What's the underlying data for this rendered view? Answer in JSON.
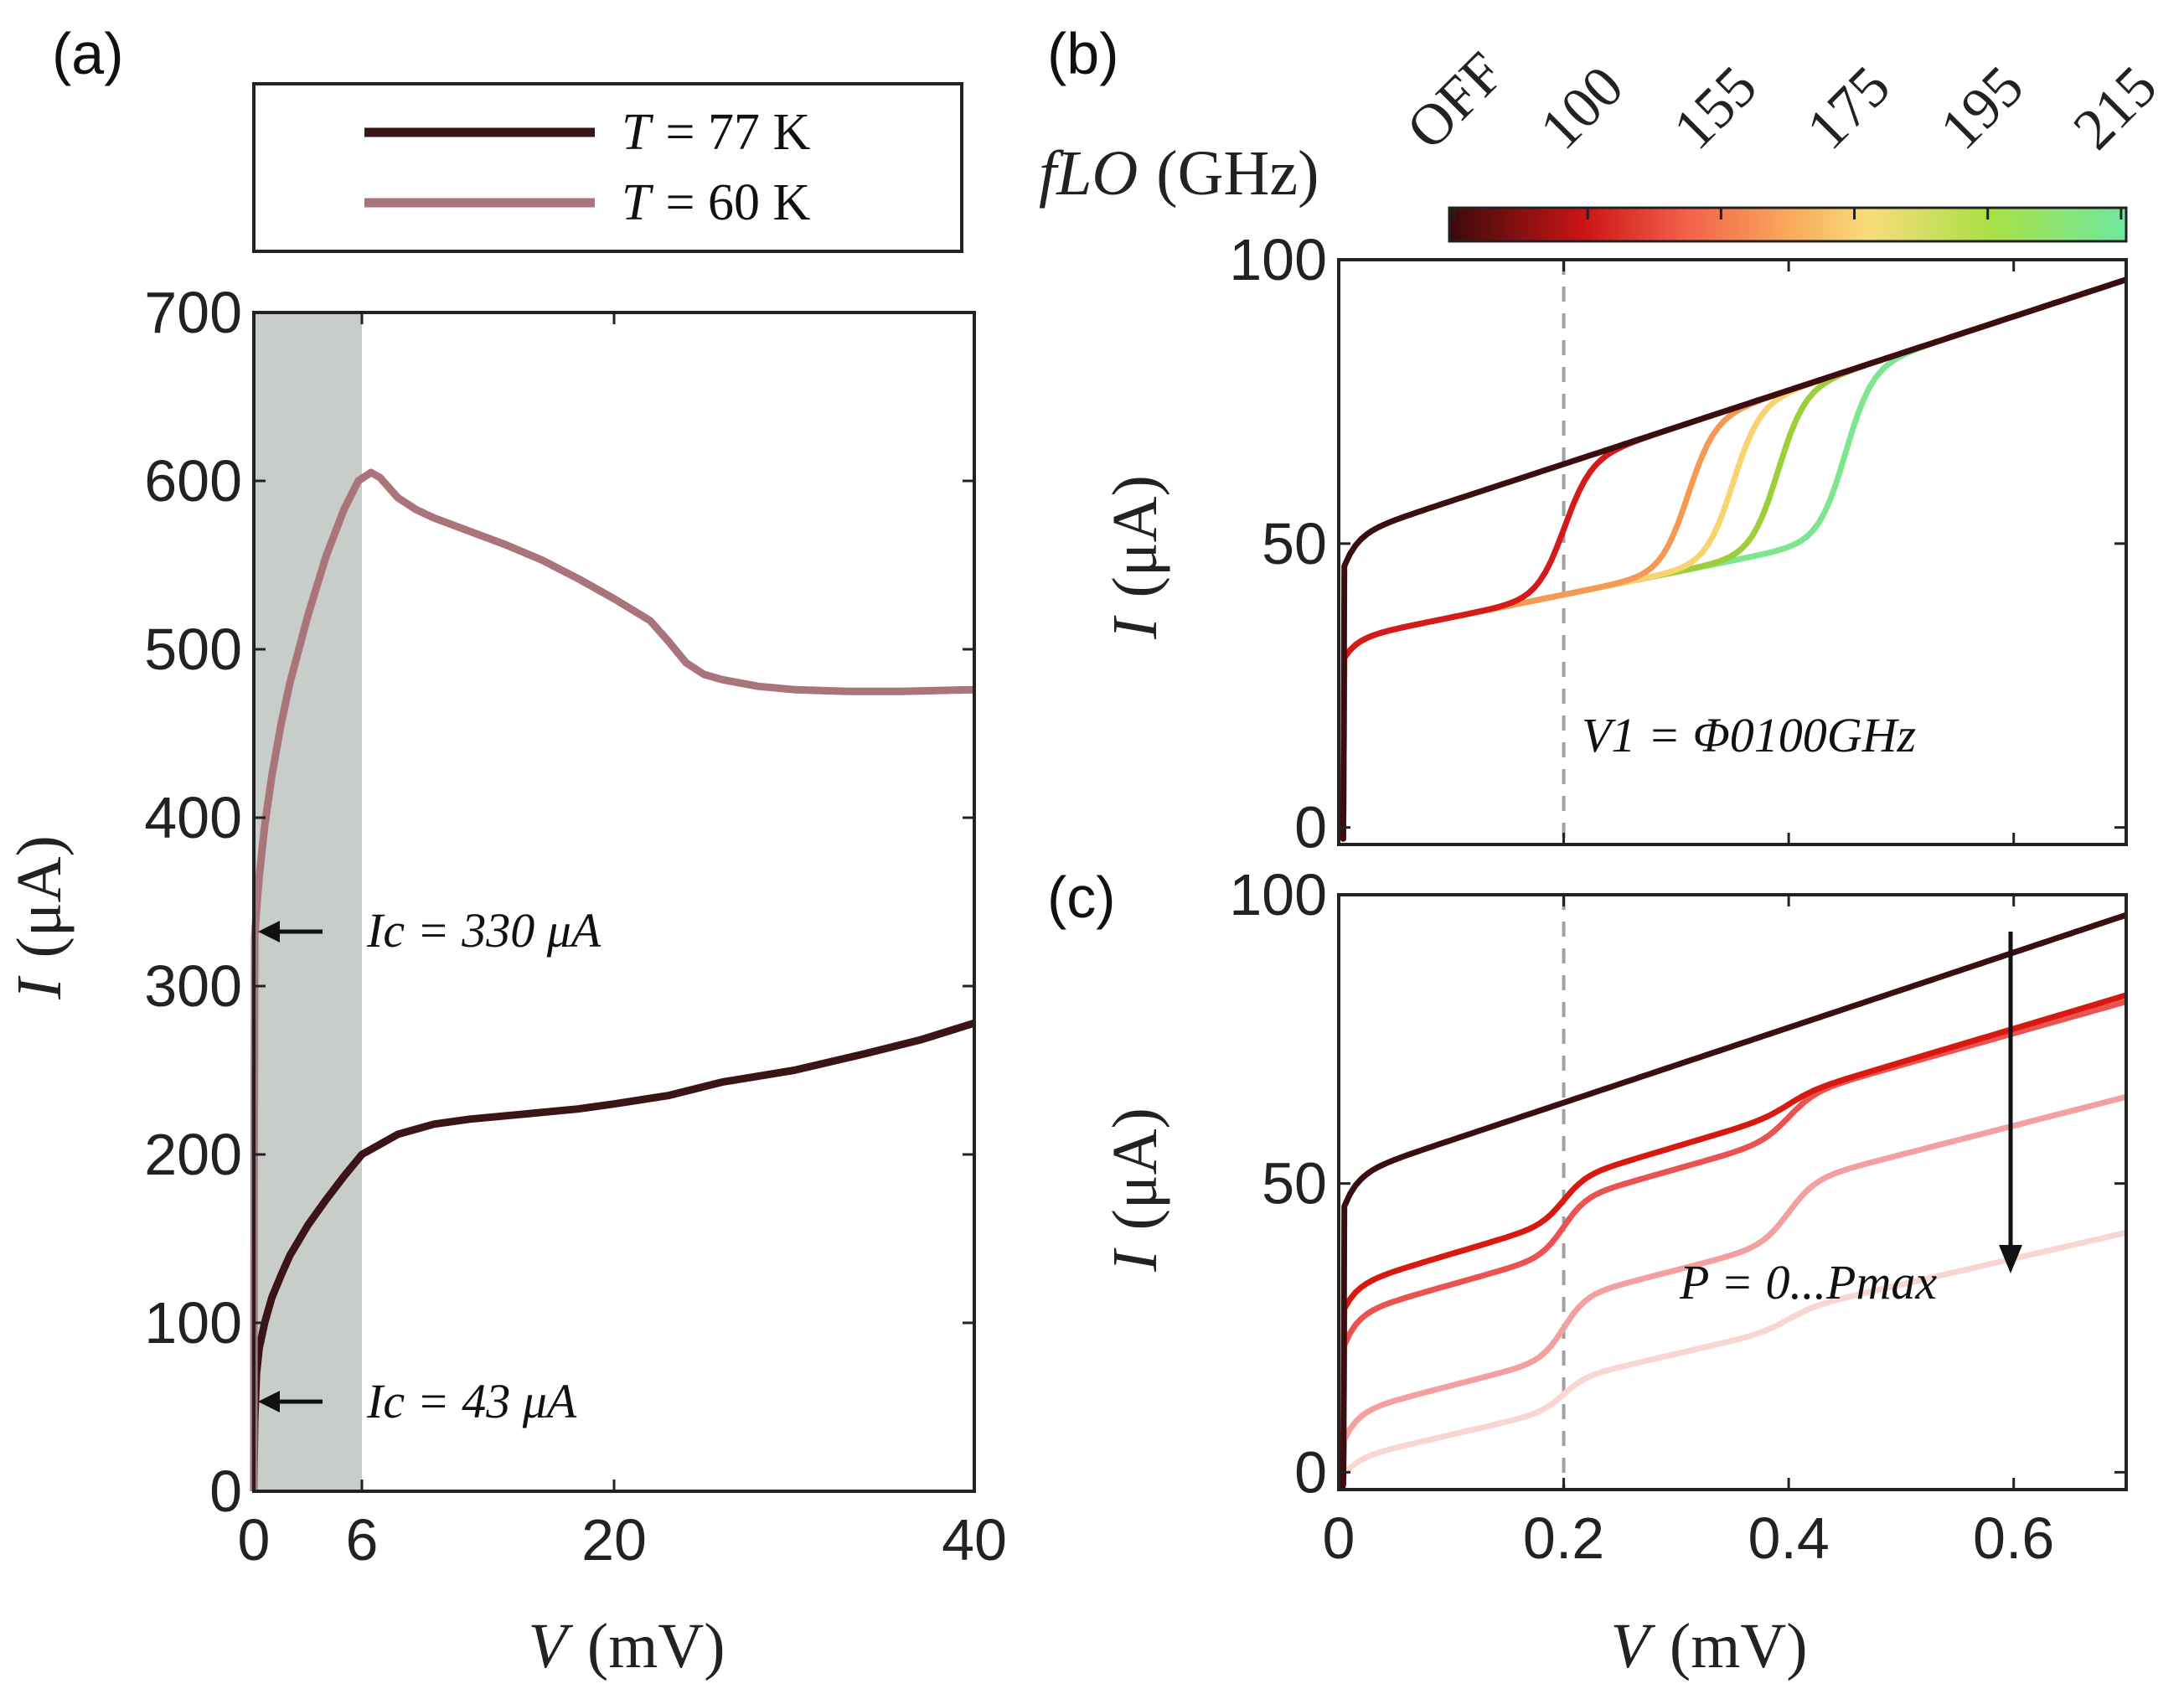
{
  "colors": {
    "axis": "#222222",
    "t77": "#3a1417",
    "t60": "#a9747a",
    "shade": "#c8cdca",
    "dashed": "#9aa3a3"
  },
  "chart_data": [
    {
      "id": "a",
      "panel_label": "(a)",
      "type": "line",
      "xlabel_var": "V",
      "xlabel_unit": "(mV)",
      "ylabel_var": "I",
      "ylabel_unit": "(μA)",
      "xlim": [
        0,
        40
      ],
      "ylim": [
        0,
        700
      ],
      "xticks": [
        "0",
        "6",
        "20",
        "40"
      ],
      "yticks": [
        "0",
        "100",
        "200",
        "300",
        "400",
        "500",
        "600",
        "700"
      ],
      "shaded_region": [
        0,
        6
      ],
      "legend": [
        {
          "var": "T",
          "text": "= 77 K"
        },
        {
          "var": "T",
          "text": "= 60 K"
        }
      ],
      "annotations": [
        {
          "text": "Ic = 330 μA",
          "value": 330
        },
        {
          "text": "Ic = 43 μA",
          "value": 43
        }
      ],
      "series": [
        {
          "name": "T = 77 K",
          "x": [
            0,
            0.02,
            0.05,
            0.15,
            0.3,
            0.6,
            1.0,
            1.5,
            2.0,
            3.0,
            4.0,
            5.0,
            6.0,
            8.0,
            10.0,
            12.0,
            15.0,
            18.0,
            20.0,
            23.0,
            26.0,
            30.0,
            34.0,
            37.0,
            40.0
          ],
          "y": [
            0,
            20,
            43,
            70,
            85,
            100,
            115,
            128,
            140,
            158,
            173,
            187,
            200,
            212,
            218,
            221,
            224,
            227,
            230,
            235,
            243,
            250,
            260,
            268,
            278
          ]
        },
        {
          "name": "T = 60 K",
          "x": [
            0,
            0.02,
            0.05,
            0.15,
            0.3,
            0.6,
            1.0,
            1.5,
            2.0,
            3.0,
            4.0,
            5.0,
            5.8,
            6.5,
            7.0,
            8.0,
            9.0,
            10.0,
            12.0,
            14.0,
            16.0,
            18.0,
            20.0,
            22.0,
            23.0,
            24.0,
            25.0,
            26.0,
            28.0,
            30.0,
            33.0,
            36.0,
            40.0
          ],
          "y": [
            0,
            200,
            330,
            345,
            365,
            395,
            425,
            455,
            480,
            520,
            555,
            583,
            600,
            605,
            602,
            590,
            583,
            578,
            570,
            562,
            553,
            542,
            530,
            517,
            505,
            492,
            485,
            482,
            478,
            476,
            475,
            475,
            476
          ]
        }
      ]
    },
    {
      "id": "b",
      "panel_label": "(b)",
      "type": "line",
      "ylabel_var": "I",
      "ylabel_unit": "(μA)",
      "xlim": [
        0,
        0.7
      ],
      "ylim": [
        -3,
        100
      ],
      "yticks": [
        "0",
        "50",
        "100"
      ],
      "vline_x": 0.2,
      "annotation": "V1 = Φ0100GHz",
      "colorbar_label_var": "fLO",
      "colorbar_label_unit": "(GHz)",
      "colorbar_ticks": [
        "OFF",
        "100",
        "155",
        "175",
        "195",
        "215"
      ],
      "series": [
        {
          "name": "OFF",
          "step_v": null,
          "color": "#3a0d10"
        },
        {
          "name": "100",
          "step_v": 0.2,
          "color": "#d41a1a"
        },
        {
          "name": "155",
          "step_v": 0.31,
          "color": "#f59a55"
        },
        {
          "name": "175",
          "step_v": 0.35,
          "color": "#f7d46f"
        },
        {
          "name": "195",
          "step_v": 0.39,
          "color": "#9ccf3a"
        },
        {
          "name": "215",
          "step_v": 0.45,
          "color": "#7de68e"
        }
      ]
    },
    {
      "id": "c",
      "panel_label": "(c)",
      "type": "line",
      "xlabel_var": "V",
      "xlabel_unit": "(mV)",
      "ylabel_var": "I",
      "ylabel_unit": "(μA)",
      "xlim": [
        0,
        0.7
      ],
      "ylim": [
        -3,
        100
      ],
      "xticks": [
        "0",
        "0.2",
        "0.4",
        "0.6"
      ],
      "yticks": [
        "0",
        "50",
        "100"
      ],
      "vline_x": 0.2,
      "annotation": "P = 0...Pmax",
      "series": [
        {
          "name": "P0",
          "color": "#3a0d10"
        },
        {
          "name": "P1",
          "color": "#d8190f"
        },
        {
          "name": "P2",
          "color": "#eb5252"
        },
        {
          "name": "P3",
          "color": "#f2a0a0"
        },
        {
          "name": "P4",
          "color": "#fad6d3"
        }
      ]
    }
  ]
}
